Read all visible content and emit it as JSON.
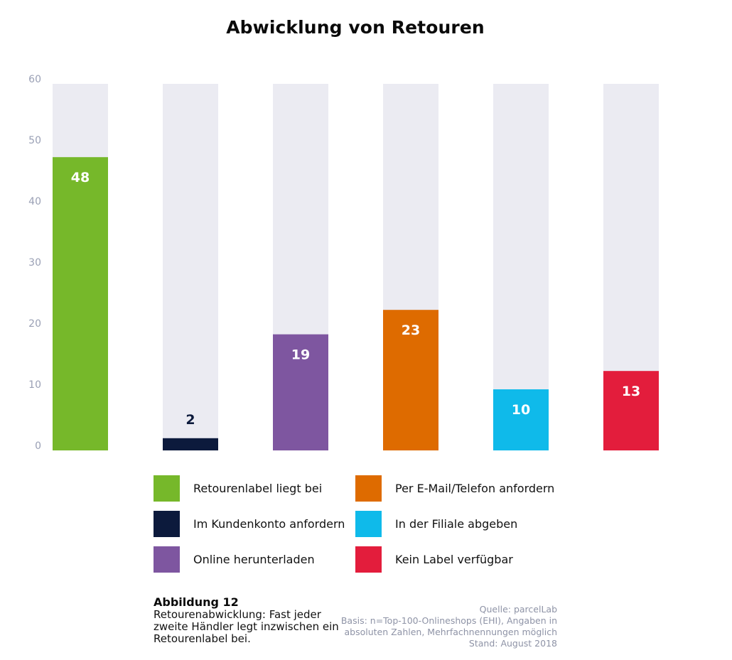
{
  "chart_data": {
    "type": "bar",
    "title": "Abwicklung von Retouren",
    "categories": [
      "Retourenlabel liegt bei",
      "Im Kundenkonto anfordern",
      "Online herunterladen",
      "Per E-Mail/Telefon anfordern",
      "In der Filiale abgeben",
      "Kein Label verfügbar"
    ],
    "values": [
      48,
      2,
      19,
      23,
      10,
      13
    ],
    "colors": [
      "#76b82a",
      "#0c1a3c",
      "#7e56a0",
      "#de6b00",
      "#0fbaea",
      "#e31d3c"
    ],
    "label_colors": [
      "#ffffff",
      "#0c1a3c",
      "#ffffff",
      "#ffffff",
      "#ffffff",
      "#ffffff"
    ],
    "background_bar_color": "#ebebf2",
    "ylim": [
      0,
      60
    ],
    "yticks": [
      0,
      10,
      20,
      30,
      40,
      50,
      60
    ],
    "xlabel": "",
    "ylabel": "",
    "grid": false,
    "legend_position": "bottom"
  },
  "legend": [
    {
      "label": "Retourenlabel liegt bei",
      "color": "#76b82a"
    },
    {
      "label": "Im Kundenkonto anfordern",
      "color": "#0c1a3c"
    },
    {
      "label": "Online herunterladen",
      "color": "#7e56a0"
    },
    {
      "label": "Per E-Mail/Telefon anfordern",
      "color": "#de6b00"
    },
    {
      "label": "In der Filiale abgeben",
      "color": "#0fbaea"
    },
    {
      "label": "Kein Label verfügbar",
      "color": "#e31d3c"
    }
  ],
  "caption": {
    "title": "Abbildung 12",
    "lines": [
      "Retourenabwicklung: Fast jeder",
      "zweite Händler legt inzwischen ein",
      "Retourenlabel bei."
    ]
  },
  "source": {
    "lines": [
      "Quelle: parcelLab",
      "Basis: n=Top-100-Onlineshops (EHI), Angaben in",
      "absoluten Zahlen, Mehrfachnennungen möglich",
      "Stand: August 2018"
    ]
  }
}
